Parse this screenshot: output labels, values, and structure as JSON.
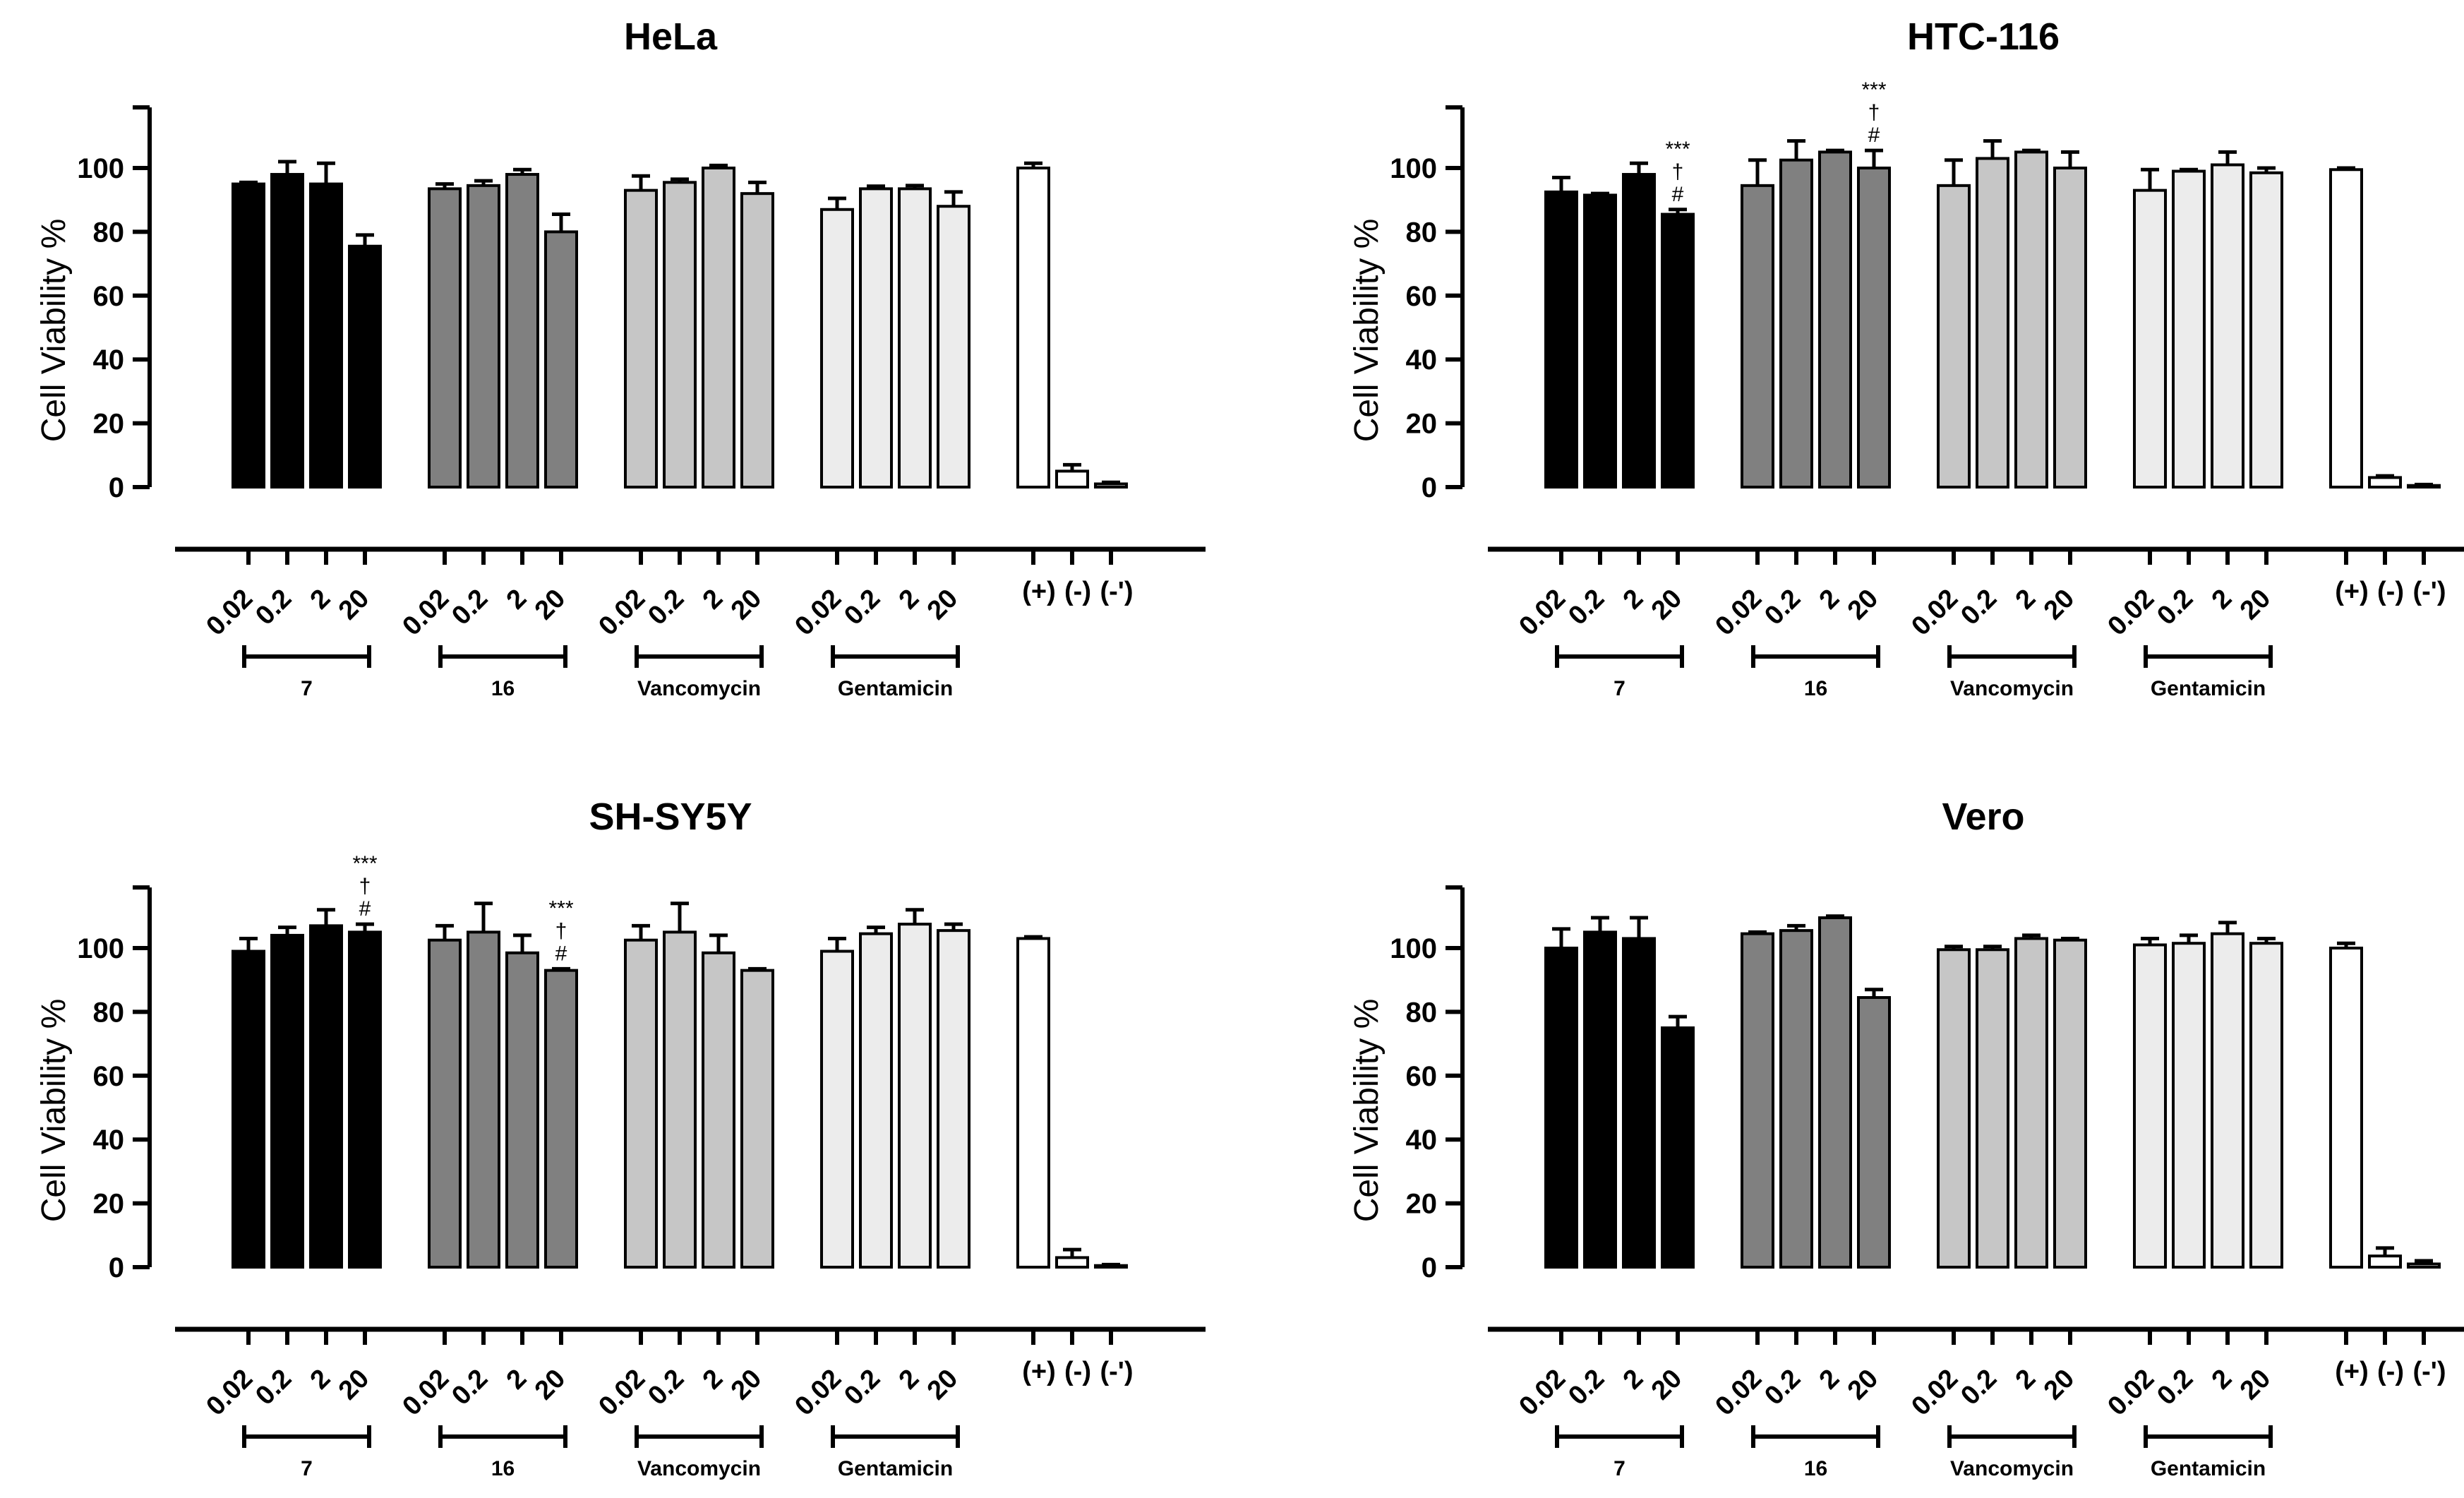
{
  "chart_data": [
    {
      "type": "bar",
      "title": "HeLa",
      "ylabel": "Cell Viability %",
      "xlabel": "",
      "ylim": [
        0,
        120
      ],
      "yticks": [
        "0",
        "20",
        "40",
        "60",
        "80",
        "100"
      ],
      "tick_labels": [
        "0.02",
        "0.2",
        "2",
        "20",
        "0.02",
        "0.2",
        "2",
        "20",
        "0.02",
        "0.2",
        "2",
        "20",
        "0.02",
        "0.2",
        "2",
        "20",
        "(+)",
        "(-)",
        "(-')"
      ],
      "groups": [
        "7",
        "16",
        "Vancomycin",
        "Gentamicin"
      ],
      "values": [
        95,
        98,
        95,
        75.5,
        93.5,
        94.5,
        98,
        80,
        93,
        95.5,
        100,
        92,
        87,
        93.5,
        93.5,
        88,
        100,
        5,
        1
      ],
      "errors": [
        0.5,
        4,
        6.5,
        3.5,
        1.5,
        1.5,
        1.5,
        5.5,
        4.5,
        1,
        0.8,
        3.5,
        3.5,
        0.8,
        1,
        4.5,
        1.5,
        2,
        0.5
      ],
      "annotations": []
    },
    {
      "type": "bar",
      "title": "HTC-116",
      "ylabel": "Cell Viability %",
      "xlabel": "",
      "ylim": [
        0,
        120
      ],
      "yticks": [
        "0",
        "20",
        "40",
        "60",
        "80",
        "100"
      ],
      "tick_labels": [
        "0.02",
        "0.2",
        "2",
        "20",
        "0.02",
        "0.2",
        "2",
        "20",
        "0.02",
        "0.2",
        "2",
        "20",
        "0.02",
        "0.2",
        "2",
        "20",
        "(+)",
        "(-)",
        "(-')"
      ],
      "groups": [
        "7",
        "16",
        "Vancomycin",
        "Gentamicin"
      ],
      "values": [
        92.5,
        91.5,
        98,
        85.5,
        94.5,
        102.5,
        105,
        100,
        94.5,
        103,
        105,
        100,
        93,
        99,
        101,
        98.5,
        99.5,
        3,
        0.5
      ],
      "errors": [
        4.5,
        0.5,
        3.5,
        1.5,
        8,
        6,
        0.5,
        5.5,
        8,
        5.5,
        0.5,
        5,
        6.5,
        0.5,
        4,
        1.5,
        0.5,
        0.5,
        0.3
      ],
      "annotations": [
        {
          "bar": 3,
          "lines": [
            "***",
            "†",
            "#"
          ]
        },
        {
          "bar": 7,
          "lines": [
            "***",
            "†",
            "#"
          ]
        }
      ]
    },
    {
      "type": "bar",
      "title": "SH-SY5Y",
      "ylabel": "Cell Viability %",
      "xlabel": "",
      "ylim": [
        0,
        120
      ],
      "yticks": [
        "0",
        "20",
        "40",
        "60",
        "80",
        "100"
      ],
      "tick_labels": [
        "0.02",
        "0.2",
        "2",
        "20",
        "0.02",
        "0.2",
        "2",
        "20",
        "0.02",
        "0.2",
        "2",
        "20",
        "0.02",
        "0.2",
        "2",
        "20",
        "(+)",
        "(-)",
        "(-')"
      ],
      "groups": [
        "7",
        "16",
        "Vancomycin",
        "Gentamicin"
      ],
      "values": [
        99,
        104,
        107,
        105,
        102.5,
        105,
        98.5,
        93,
        102.5,
        105,
        98.5,
        93,
        99,
        104.5,
        107.5,
        105.5,
        103,
        3,
        0.5
      ],
      "errors": [
        4,
        2.5,
        5,
        2.5,
        4.5,
        9,
        5.5,
        0.5,
        4.5,
        9,
        5.5,
        0.5,
        4,
        2,
        4.5,
        2,
        0.5,
        2.5,
        0.3
      ],
      "annotations": [
        {
          "bar": 3,
          "lines": [
            "***",
            "†",
            "#"
          ]
        },
        {
          "bar": 7,
          "lines": [
            "***",
            "†",
            "#"
          ]
        }
      ]
    },
    {
      "type": "bar",
      "title": "Vero",
      "ylabel": "Cell Viability %",
      "xlabel": "",
      "ylim": [
        0,
        120
      ],
      "yticks": [
        "0",
        "20",
        "40",
        "60",
        "80",
        "100"
      ],
      "tick_labels": [
        "0.02",
        "0.2",
        "2",
        "20",
        "0.02",
        "0.2",
        "2",
        "20",
        "0.02",
        "0.2",
        "2",
        "20",
        "0.02",
        "0.2",
        "2",
        "20",
        "(+)",
        "(-)",
        "(-')"
      ],
      "groups": [
        "7",
        "16",
        "Vancomycin",
        "Gentamicin"
      ],
      "values": [
        100,
        105,
        103,
        75,
        104.5,
        105.5,
        109.5,
        84.5,
        99.5,
        99.5,
        103,
        102.5,
        101,
        101.5,
        104.5,
        101.5,
        100,
        3.5,
        1
      ],
      "errors": [
        6,
        4.5,
        6.5,
        3.5,
        0.5,
        1.5,
        0.5,
        2.5,
        1,
        1,
        1,
        0.5,
        2,
        2.5,
        3.5,
        1.5,
        1.5,
        2.5,
        1
      ],
      "annotations": []
    }
  ],
  "colors": {
    "compound_7": "#000000",
    "compound_16": "#808080",
    "vancomycin": "#c6c6c6",
    "gentamicin": "#ececec",
    "controls": "#ffffff",
    "stroke": "#000000"
  }
}
